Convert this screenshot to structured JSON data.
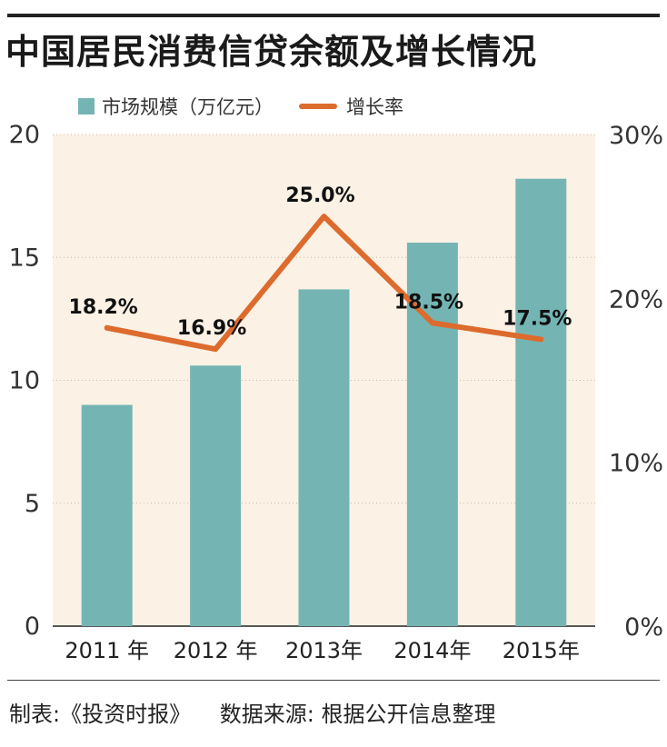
{
  "title": "中国居民消费信贷余额及增长情况",
  "legend": {
    "bar_label": "市场规模（万亿元）",
    "line_label": "增长率"
  },
  "colors": {
    "bar": "#74b5b4",
    "line": "#dc6b2d",
    "plot_bg": "#fbf1e5"
  },
  "chart_data": {
    "type": "bar",
    "title": "中国居民消费信贷余额及增长情况",
    "categories": [
      "2011 年",
      "2012 年",
      "2013年",
      "2014年",
      "2015年"
    ],
    "series": [
      {
        "name": "市场规模（万亿元）",
        "type": "bar",
        "axis": "left",
        "values": [
          9.0,
          10.6,
          13.7,
          15.6,
          18.2
        ]
      },
      {
        "name": "增长率",
        "type": "line",
        "axis": "right",
        "values": [
          18.2,
          16.9,
          25.0,
          18.5,
          17.5
        ]
      }
    ],
    "line_labels": [
      "18.2%",
      "16.9%",
      "25.0%",
      "18.5%",
      "17.5%"
    ],
    "left_axis": {
      "ylim": [
        0,
        20
      ],
      "ticks": [
        0,
        5,
        10,
        15,
        20
      ],
      "tick_labels": [
        "0",
        "5",
        "10",
        "15",
        "20"
      ]
    },
    "right_axis": {
      "ylim": [
        0,
        30
      ],
      "ticks": [
        0,
        10,
        20,
        30
      ],
      "tick_labels": [
        "0%",
        "10%",
        "20%",
        "30%"
      ]
    },
    "grid": true,
    "legend_position": "top-left"
  },
  "footer": {
    "maker": "制表:《投资时报》",
    "source": "数据来源: 根据公开信息整理"
  }
}
